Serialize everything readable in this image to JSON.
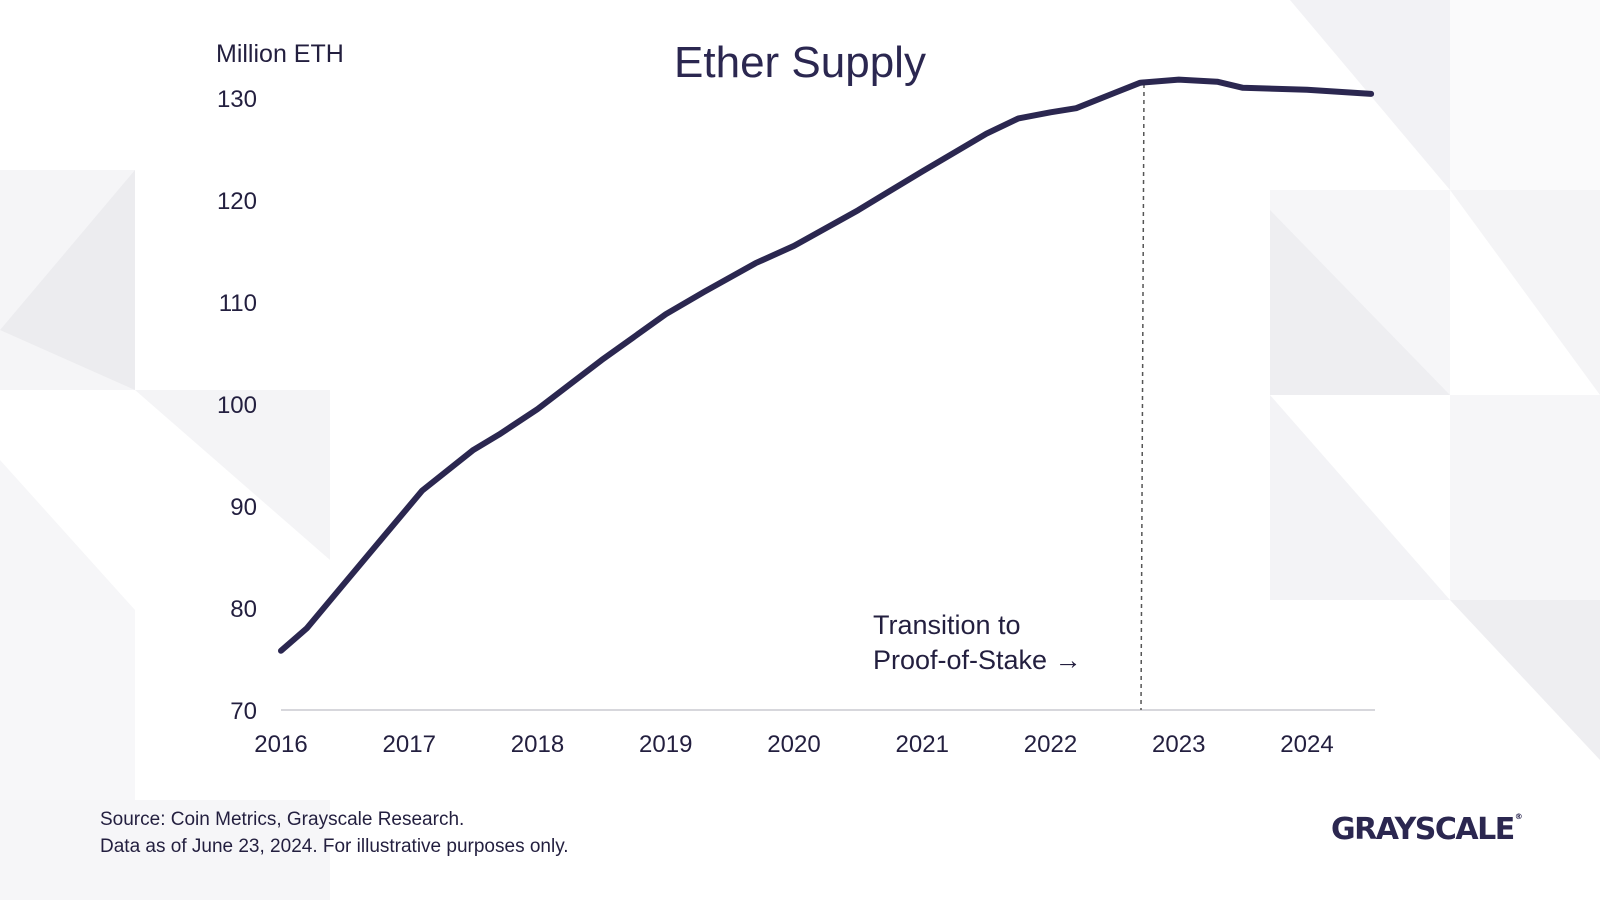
{
  "chart_data": {
    "type": "line",
    "title": "Ether Supply",
    "ylabel": "Million ETH",
    "xlabel": "",
    "ylim": [
      70,
      130
    ],
    "xlim": [
      2016,
      2024.5
    ],
    "y_ticks": [
      "70",
      "80",
      "90",
      "100",
      "110",
      "120",
      "130"
    ],
    "x_ticks": [
      "2016",
      "2017",
      "2018",
      "2019",
      "2020",
      "2021",
      "2022",
      "2023",
      "2024"
    ],
    "grid": false,
    "legend": "none",
    "line_color": "#2b2750",
    "series": [
      {
        "x": [
          2016.0,
          2016.2,
          2016.5,
          2016.8,
          2017.1,
          2017.5,
          2017.7,
          2018.0,
          2018.5,
          2019.0,
          2019.3,
          2019.7,
          2020.0,
          2020.5,
          2021.0,
          2021.5,
          2021.75,
          2022.0,
          2022.2,
          2022.5,
          2022.7,
          2023.0,
          2023.3,
          2023.5,
          2024.0,
          2024.5
        ],
        "y": [
          75.8,
          78.0,
          82.5,
          87.0,
          91.5,
          95.5,
          97.0,
          99.5,
          104.3,
          108.8,
          111.0,
          113.8,
          115.5,
          119.0,
          122.8,
          126.5,
          128.0,
          128.6,
          129.0,
          130.5,
          131.5,
          131.8,
          131.6,
          131.0,
          130.8,
          130.4
        ]
      }
    ],
    "annotation": {
      "text_line1": "Transition to",
      "text_line2": "Proof-of-Stake →",
      "x": 2022.7
    }
  },
  "footer": {
    "source_line1": "Source: Coin Metrics, Grayscale Research.",
    "source_line2": "Data as of June 23, 2024. For illustrative purposes only.",
    "brand": "GRAYSCALE",
    "brand_mark": "®"
  },
  "colors": {
    "line": "#2b2750",
    "text": "#231f3f",
    "axis": "#d7d7dc",
    "dashed": "#555555",
    "background_tile": "#f4f4f6"
  }
}
